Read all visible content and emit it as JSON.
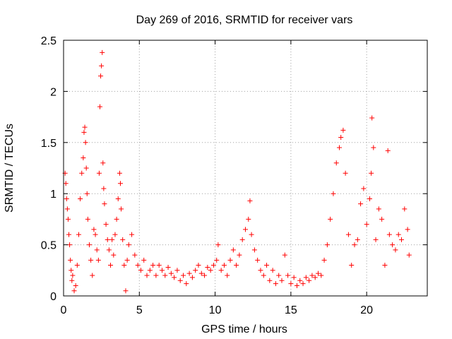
{
  "chart_data": {
    "type": "scatter",
    "title": "Day 269 of 2016, SRMTID for receiver vars",
    "xlabel": "GPS time / hours",
    "ylabel": "SRMTID / TECUs",
    "xlim": [
      0,
      24
    ],
    "ylim": [
      0,
      2.5
    ],
    "xticks": [
      0,
      5,
      10,
      15,
      20
    ],
    "yticks": [
      0,
      0.5,
      1,
      1.5,
      2,
      2.5
    ],
    "xtick_labels": [
      "0",
      "5",
      "10",
      "15",
      "20"
    ],
    "ytick_labels": [
      "0",
      "0.5",
      "1",
      "1.5",
      "2",
      "2.5"
    ],
    "grid": true,
    "marker": "+",
    "color": "#ff0000",
    "series": [
      {
        "name": "SRMTID",
        "points": [
          [
            0.1,
            1.2
          ],
          [
            0.15,
            1.1
          ],
          [
            0.2,
            0.95
          ],
          [
            0.25,
            0.85
          ],
          [
            0.3,
            0.75
          ],
          [
            0.35,
            0.6
          ],
          [
            0.4,
            0.5
          ],
          [
            0.45,
            0.35
          ],
          [
            0.5,
            0.25
          ],
          [
            0.55,
            0.15
          ],
          [
            0.6,
            0.2
          ],
          [
            0.7,
            0.05
          ],
          [
            0.8,
            0.1
          ],
          [
            0.9,
            0.3
          ],
          [
            1.0,
            0.6
          ],
          [
            1.1,
            0.95
          ],
          [
            1.2,
            1.2
          ],
          [
            1.3,
            1.35
          ],
          [
            1.35,
            1.6
          ],
          [
            1.4,
            1.65
          ],
          [
            1.45,
            1.5
          ],
          [
            1.5,
            1.25
          ],
          [
            1.55,
            1.0
          ],
          [
            1.6,
            0.75
          ],
          [
            1.7,
            0.5
          ],
          [
            1.8,
            0.35
          ],
          [
            1.9,
            0.2
          ],
          [
            2.0,
            0.65
          ],
          [
            2.1,
            0.6
          ],
          [
            2.2,
            0.45
          ],
          [
            2.3,
            0.35
          ],
          [
            2.35,
            1.2
          ],
          [
            2.4,
            1.85
          ],
          [
            2.45,
            2.15
          ],
          [
            2.5,
            2.25
          ],
          [
            2.55,
            2.38
          ],
          [
            2.6,
            1.3
          ],
          [
            2.65,
            1.05
          ],
          [
            2.7,
            0.9
          ],
          [
            2.8,
            0.7
          ],
          [
            2.9,
            0.55
          ],
          [
            3.0,
            0.45
          ],
          [
            3.1,
            0.3
          ],
          [
            3.2,
            0.55
          ],
          [
            3.3,
            0.4
          ],
          [
            3.4,
            0.6
          ],
          [
            3.5,
            0.75
          ],
          [
            3.6,
            0.95
          ],
          [
            3.7,
            1.2
          ],
          [
            3.75,
            1.1
          ],
          [
            3.8,
            0.85
          ],
          [
            3.9,
            0.55
          ],
          [
            4.0,
            0.3
          ],
          [
            4.1,
            0.05
          ],
          [
            4.2,
            0.35
          ],
          [
            4.3,
            0.5
          ],
          [
            4.5,
            0.6
          ],
          [
            4.7,
            0.4
          ],
          [
            4.9,
            0.3
          ],
          [
            5.1,
            0.25
          ],
          [
            5.3,
            0.35
          ],
          [
            5.5,
            0.2
          ],
          [
            5.7,
            0.25
          ],
          [
            5.9,
            0.3
          ],
          [
            6.1,
            0.2
          ],
          [
            6.3,
            0.3
          ],
          [
            6.5,
            0.25
          ],
          [
            6.7,
            0.2
          ],
          [
            6.9,
            0.28
          ],
          [
            7.1,
            0.22
          ],
          [
            7.3,
            0.18
          ],
          [
            7.5,
            0.25
          ],
          [
            7.7,
            0.15
          ],
          [
            7.9,
            0.2
          ],
          [
            8.1,
            0.12
          ],
          [
            8.3,
            0.22
          ],
          [
            8.5,
            0.18
          ],
          [
            8.7,
            0.25
          ],
          [
            8.9,
            0.3
          ],
          [
            9.1,
            0.22
          ],
          [
            9.3,
            0.2
          ],
          [
            9.5,
            0.28
          ],
          [
            9.7,
            0.25
          ],
          [
            9.9,
            0.3
          ],
          [
            10.1,
            0.35
          ],
          [
            10.2,
            0.5
          ],
          [
            10.4,
            0.25
          ],
          [
            10.6,
            0.3
          ],
          [
            10.8,
            0.2
          ],
          [
            11.0,
            0.35
          ],
          [
            11.2,
            0.45
          ],
          [
            11.4,
            0.3
          ],
          [
            11.6,
            0.4
          ],
          [
            11.8,
            0.55
          ],
          [
            12.0,
            0.65
          ],
          [
            12.2,
            0.75
          ],
          [
            12.3,
            0.93
          ],
          [
            12.4,
            0.6
          ],
          [
            12.6,
            0.45
          ],
          [
            12.8,
            0.35
          ],
          [
            13.0,
            0.25
          ],
          [
            13.2,
            0.2
          ],
          [
            13.4,
            0.3
          ],
          [
            13.6,
            0.15
          ],
          [
            13.8,
            0.25
          ],
          [
            14.0,
            0.12
          ],
          [
            14.2,
            0.2
          ],
          [
            14.4,
            0.15
          ],
          [
            14.6,
            0.4
          ],
          [
            14.8,
            0.2
          ],
          [
            15.0,
            0.12
          ],
          [
            15.2,
            0.18
          ],
          [
            15.4,
            0.1
          ],
          [
            15.6,
            0.15
          ],
          [
            15.8,
            0.12
          ],
          [
            16.0,
            0.18
          ],
          [
            16.2,
            0.15
          ],
          [
            16.4,
            0.2
          ],
          [
            16.6,
            0.18
          ],
          [
            16.8,
            0.22
          ],
          [
            17.0,
            0.2
          ],
          [
            17.2,
            0.35
          ],
          [
            17.4,
            0.5
          ],
          [
            17.6,
            0.75
          ],
          [
            17.8,
            1.0
          ],
          [
            18.0,
            1.3
          ],
          [
            18.2,
            1.45
          ],
          [
            18.3,
            1.55
          ],
          [
            18.45,
            1.62
          ],
          [
            18.6,
            1.2
          ],
          [
            18.8,
            0.6
          ],
          [
            19.0,
            0.3
          ],
          [
            19.2,
            0.5
          ],
          [
            19.4,
            0.55
          ],
          [
            19.6,
            0.9
          ],
          [
            19.8,
            1.05
          ],
          [
            20.0,
            0.7
          ],
          [
            20.2,
            0.95
          ],
          [
            20.3,
            1.2
          ],
          [
            20.35,
            1.74
          ],
          [
            20.45,
            1.45
          ],
          [
            20.6,
            0.55
          ],
          [
            20.8,
            0.85
          ],
          [
            21.0,
            0.75
          ],
          [
            21.2,
            0.3
          ],
          [
            21.4,
            1.42
          ],
          [
            21.5,
            0.6
          ],
          [
            21.7,
            0.5
          ],
          [
            21.9,
            0.45
          ],
          [
            22.1,
            0.6
          ],
          [
            22.3,
            0.55
          ],
          [
            22.5,
            0.85
          ],
          [
            22.7,
            0.65
          ],
          [
            22.8,
            0.4
          ]
        ]
      }
    ]
  }
}
